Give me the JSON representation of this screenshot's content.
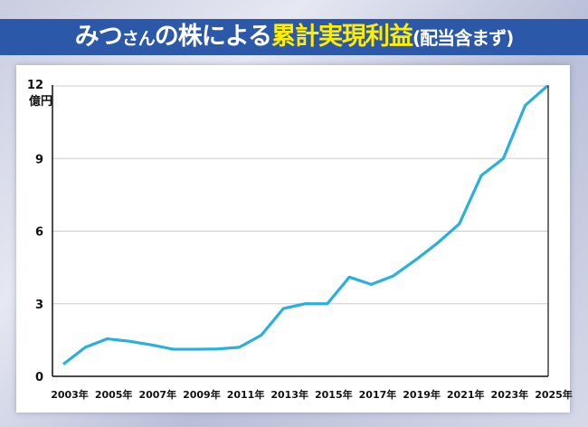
{
  "title": {
    "part1": "みつ",
    "part2": "さん",
    "part3": "の株による",
    "highlight": "累計実現利益",
    "suffix": "(配当含まず)"
  },
  "colors": {
    "banner": "#2b58a8",
    "highlight": "#ffee00",
    "line": "#29b0dc"
  },
  "chart_data": {
    "type": "line",
    "title": "みつさんの株による累計実現利益(配当含まず)",
    "ylabel": "億円",
    "xlabel": "",
    "ylim": [
      0,
      12
    ],
    "yticks": [
      0,
      3,
      6,
      9,
      12
    ],
    "ytick_labels": [
      "0",
      "3",
      "6",
      "9",
      "12"
    ],
    "grid": true,
    "x": [
      2003,
      2004,
      2005,
      2006,
      2007,
      2008,
      2009,
      2010,
      2011,
      2012,
      2013,
      2014,
      2015,
      2016,
      2017,
      2018,
      2019,
      2020,
      2021,
      2022,
      2023,
      2024,
      2025
    ],
    "xtick_labels": [
      "2003年",
      "2005年",
      "2007年",
      "2009年",
      "2011年",
      "2013年",
      "2015年",
      "2017年",
      "2019年",
      "2021年",
      "2023年",
      "2025年"
    ],
    "values": [
      0.5,
      1.2,
      1.55,
      1.45,
      1.3,
      1.12,
      1.12,
      1.13,
      1.2,
      1.7,
      2.8,
      3.0,
      3.0,
      4.1,
      3.8,
      4.15,
      4.8,
      5.5,
      6.3,
      8.3,
      9.0,
      11.2,
      12.0
    ]
  }
}
